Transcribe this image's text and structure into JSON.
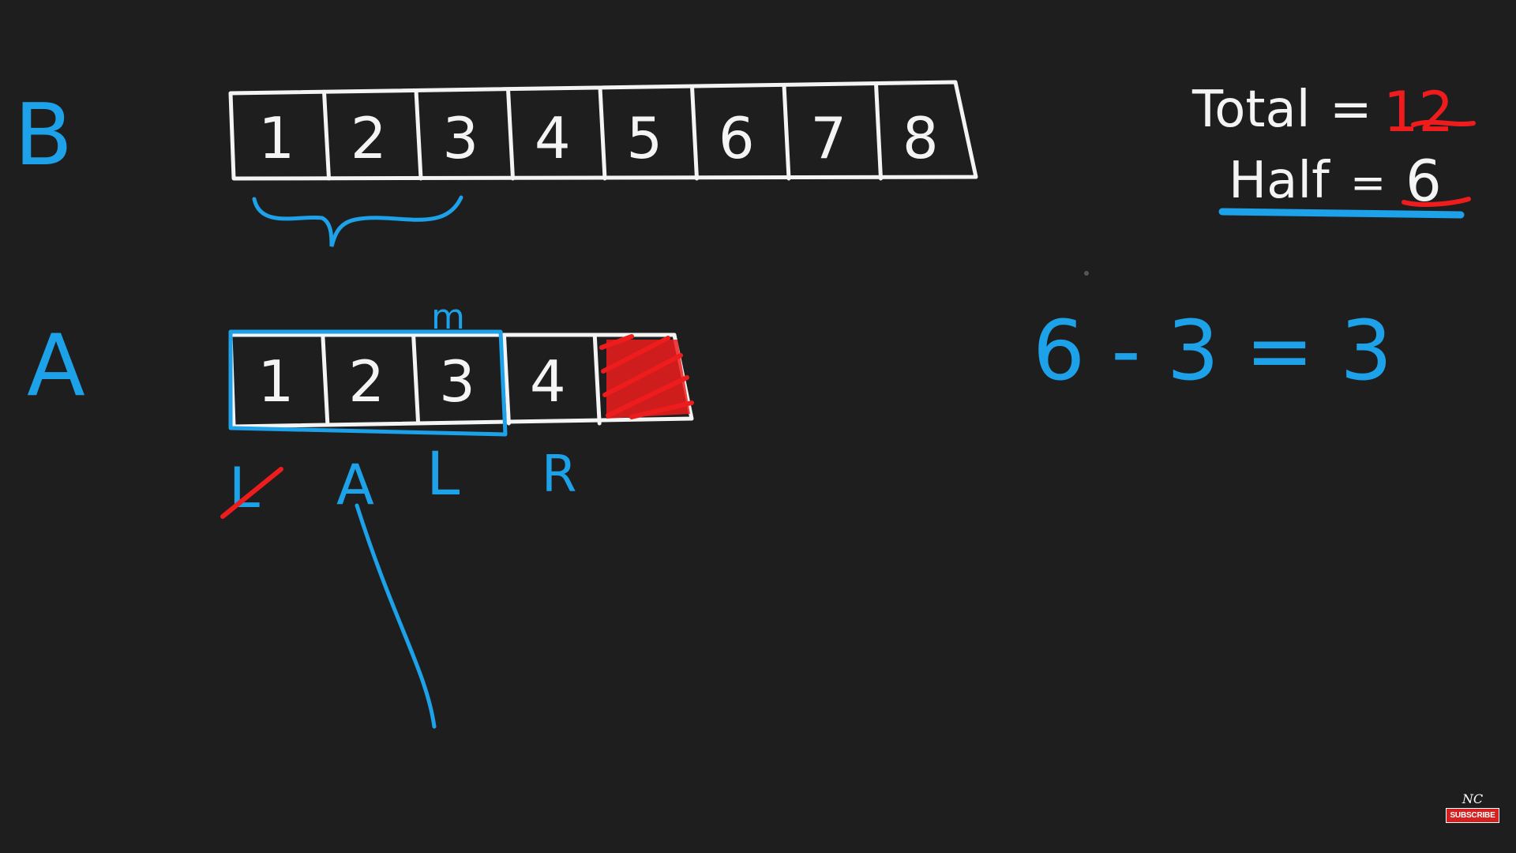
{
  "labels": {
    "array_b": "B",
    "array_a": "A",
    "mid_marker": "m"
  },
  "array_b_cells": [
    "1",
    "2",
    "3",
    "4",
    "5",
    "6",
    "7",
    "8"
  ],
  "array_a_cells": [
    "1",
    "2",
    "3",
    "4"
  ],
  "pointers": {
    "old_left": "L",
    "left_arrow": "A",
    "left": "L",
    "right": "R"
  },
  "totals": {
    "total_label": "Total",
    "equals": "=",
    "total_value": "12",
    "half_label": "Half",
    "half_value": "6"
  },
  "equation": "6 - 3 = 3",
  "subscribe": {
    "logo": "NC",
    "button": "SUBSCRIBE"
  },
  "colors": {
    "background": "#1e1e1e",
    "ink_white": "#f4f4f4",
    "ink_blue": "#1da1e8",
    "ink_red": "#ee1c1c"
  }
}
